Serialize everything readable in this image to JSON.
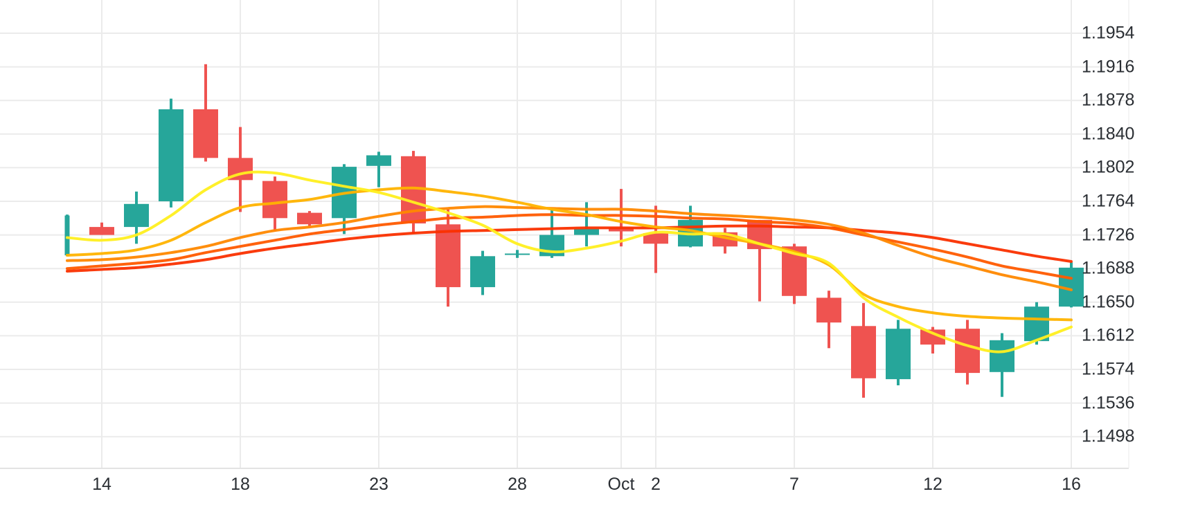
{
  "colors": {
    "background": "#ffffff",
    "grid": "#ebebeb",
    "axis_line": "#e3e3e3",
    "text": "#2a2e33",
    "up": "#26a69a",
    "down": "#ef5350"
  },
  "chart_data": {
    "type": "candlestick",
    "instrument_price_format": "1.xxxx",
    "legend_position": "none",
    "grid": "on",
    "y_axis": {
      "side": "right",
      "tick_labels": [
        "1.1954",
        "1.1916",
        "1.1878",
        "1.1840",
        "1.1802",
        "1.1764",
        "1.1726",
        "1.1688",
        "1.1650",
        "1.1612",
        "1.1574",
        "1.1536",
        "1.1498"
      ],
      "tick_values": [
        1.1954,
        1.1916,
        1.1878,
        1.184,
        1.1802,
        1.1764,
        1.1726,
        1.1688,
        1.165,
        1.1612,
        1.1574,
        1.1536,
        1.1498
      ],
      "tick_step": 0.0038,
      "visible_range": [
        1.1462,
        1.1992
      ]
    },
    "x_axis": {
      "tick_labels": [
        "14",
        "18",
        "23",
        "28",
        "Oct",
        "2",
        "7",
        "12",
        "16"
      ],
      "tick_candle_indices": [
        1,
        5,
        9,
        13,
        16,
        17,
        21,
        25,
        29
      ]
    },
    "candles": [
      {
        "o": 1.1703,
        "h": 1.1749,
        "l": 1.1702,
        "c": 1.1748,
        "thin": true
      },
      {
        "o": 1.1735,
        "h": 1.174,
        "l": 1.1726,
        "c": 1.1726
      },
      {
        "o": 1.1735,
        "h": 1.1775,
        "l": 1.1716,
        "c": 1.1761
      },
      {
        "o": 1.1764,
        "h": 1.188,
        "l": 1.1757,
        "c": 1.1868
      },
      {
        "o": 1.1868,
        "h": 1.1919,
        "l": 1.1809,
        "c": 1.1813
      },
      {
        "o": 1.1813,
        "h": 1.1848,
        "l": 1.1752,
        "c": 1.1788
      },
      {
        "o": 1.1787,
        "h": 1.1792,
        "l": 1.173,
        "c": 1.1745
      },
      {
        "o": 1.1751,
        "h": 1.1753,
        "l": 1.1736,
        "c": 1.1738
      },
      {
        "o": 1.1745,
        "h": 1.1806,
        "l": 1.1727,
        "c": 1.1803
      },
      {
        "o": 1.1804,
        "h": 1.182,
        "l": 1.178,
        "c": 1.1816
      },
      {
        "o": 1.1815,
        "h": 1.1821,
        "l": 1.1728,
        "c": 1.1739
      },
      {
        "o": 1.1738,
        "h": 1.1755,
        "l": 1.1645,
        "c": 1.1667
      },
      {
        "o": 1.1667,
        "h": 1.1708,
        "l": 1.1658,
        "c": 1.1702
      },
      {
        "o": 1.1704,
        "h": 1.1709,
        "l": 1.17,
        "c": 1.1705
      },
      {
        "o": 1.1702,
        "h": 1.1756,
        "l": 1.17,
        "c": 1.1726
      },
      {
        "o": 1.1726,
        "h": 1.1763,
        "l": 1.1713,
        "c": 1.1733
      },
      {
        "o": 1.1734,
        "h": 1.1778,
        "l": 1.1713,
        "c": 1.173
      },
      {
        "o": 1.1728,
        "h": 1.1759,
        "l": 1.1683,
        "c": 1.1716
      },
      {
        "o": 1.1713,
        "h": 1.1759,
        "l": 1.1712,
        "c": 1.1743
      },
      {
        "o": 1.1729,
        "h": 1.1734,
        "l": 1.1705,
        "c": 1.1713
      },
      {
        "o": 1.1743,
        "h": 1.1743,
        "l": 1.1651,
        "c": 1.171
      },
      {
        "o": 1.1713,
        "h": 1.1716,
        "l": 1.1648,
        "c": 1.1657
      },
      {
        "o": 1.1655,
        "h": 1.1663,
        "l": 1.1598,
        "c": 1.1627
      },
      {
        "o": 1.1623,
        "h": 1.1649,
        "l": 1.1542,
        "c": 1.1564
      },
      {
        "o": 1.1563,
        "h": 1.163,
        "l": 1.1556,
        "c": 1.162
      },
      {
        "o": 1.1619,
        "h": 1.1622,
        "l": 1.1592,
        "c": 1.1602
      },
      {
        "o": 1.162,
        "h": 1.163,
        "l": 1.1557,
        "c": 1.157
      },
      {
        "o": 1.1571,
        "h": 1.1615,
        "l": 1.1543,
        "c": 1.1607
      },
      {
        "o": 1.1606,
        "h": 1.165,
        "l": 1.1602,
        "c": 1.1645
      },
      {
        "o": 1.1645,
        "h": 1.1695,
        "l": 1.1644,
        "c": 1.1689
      }
    ],
    "ma_lines": [
      {
        "name": "ma-fast-yellow",
        "color": "#ffef1f",
        "values": [
          1.1723,
          1.172,
          1.1726,
          1.1748,
          1.1777,
          1.1795,
          1.1796,
          1.1788,
          1.1781,
          1.1774,
          1.1763,
          1.1751,
          1.1737,
          1.1716,
          1.1707,
          1.1711,
          1.1719,
          1.1729,
          1.1727,
          1.1727,
          1.1716,
          1.1705,
          1.1694,
          1.1655,
          1.1633,
          1.1615,
          1.1601,
          1.1594,
          1.1607,
          1.1622
        ]
      },
      {
        "name": "ma-amber",
        "color": "#ffb300",
        "values": [
          1.1703,
          1.1705,
          1.1709,
          1.172,
          1.174,
          1.1757,
          1.1762,
          1.1766,
          1.1773,
          1.1777,
          1.1779,
          1.1775,
          1.177,
          1.1763,
          1.1755,
          1.1749,
          1.1741,
          1.1735,
          1.1731,
          1.1723,
          1.1716,
          1.1707,
          1.1692,
          1.1659,
          1.1645,
          1.1638,
          1.1634,
          1.1632,
          1.1631,
          1.163
        ]
      },
      {
        "name": "ma-orange",
        "color": "#ff8800",
        "values": [
          1.1697,
          1.1698,
          1.1701,
          1.1706,
          1.1713,
          1.1723,
          1.1731,
          1.1735,
          1.174,
          1.1747,
          1.1753,
          1.1756,
          1.1758,
          1.1757,
          1.1756,
          1.1755,
          1.1755,
          1.1753,
          1.175,
          1.1748,
          1.1746,
          1.1743,
          1.1738,
          1.1728,
          1.1714,
          1.1701,
          1.1691,
          1.1681,
          1.1673,
          1.1664
        ]
      },
      {
        "name": "ma-deep-orange",
        "color": "#ff5a00",
        "values": [
          1.1688,
          1.1691,
          1.1694,
          1.1698,
          1.1706,
          1.1713,
          1.172,
          1.1727,
          1.1732,
          1.1737,
          1.1741,
          1.1745,
          1.1746,
          1.1748,
          1.1749,
          1.1748,
          1.1748,
          1.1747,
          1.1745,
          1.1744,
          1.1741,
          1.1739,
          1.1734,
          1.1726,
          1.1718,
          1.171,
          1.1701,
          1.1691,
          1.1684,
          1.1677
        ]
      },
      {
        "name": "ma-slow-red",
        "color": "#fa3000",
        "values": [
          1.1685,
          1.1687,
          1.1689,
          1.1693,
          1.1698,
          1.1705,
          1.1711,
          1.1716,
          1.1721,
          1.1725,
          1.1728,
          1.173,
          1.1731,
          1.1732,
          1.1733,
          1.1734,
          1.1734,
          1.1734,
          1.1735,
          1.1736,
          1.1736,
          1.1735,
          1.1734,
          1.1731,
          1.1728,
          1.1723,
          1.1716,
          1.1709,
          1.1702,
          1.1696
        ]
      }
    ]
  }
}
